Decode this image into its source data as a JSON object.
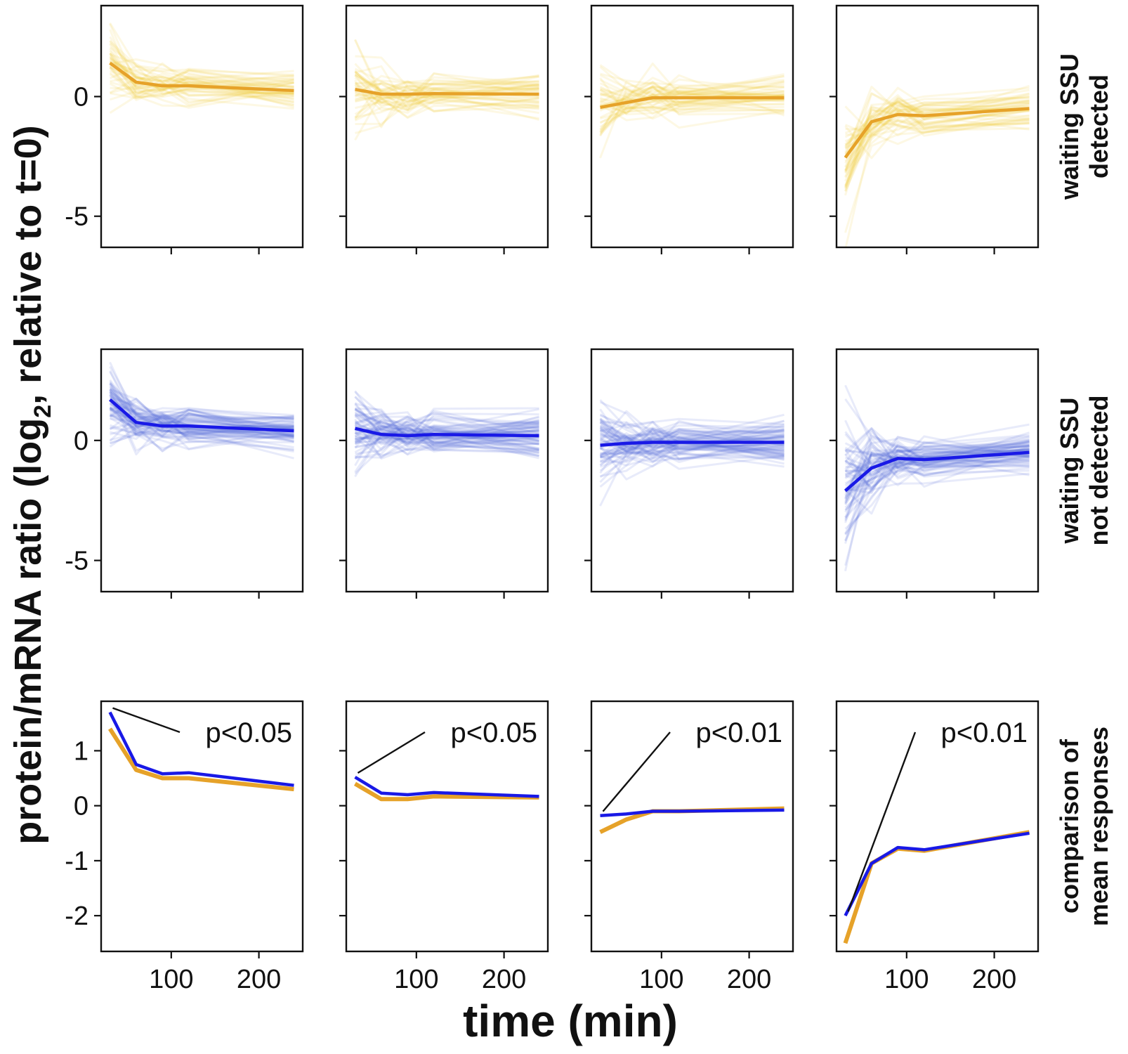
{
  "colors": {
    "detected_mean": "#e6a229",
    "detected_individual": "#f3c832",
    "not_detected_mean": "#1919e6",
    "not_detected_individual": "#4a68dc",
    "axis": "#111111",
    "background": "#ffffff"
  },
  "chart_data": {
    "type": "line",
    "layout": "3 rows x 4 columns small multiples",
    "xlabel": "time (min)",
    "ylabel": "protein/mRNA ratio (log2, relative to t=0)",
    "ylabel_parts": {
      "main": "protein/mRNA ratio (log",
      "subscript": "2",
      "tail": ", relative to t=0)"
    },
    "x": [
      30,
      60,
      90,
      120,
      240
    ],
    "xticks": [
      100,
      200
    ],
    "xtick_labels": [
      "100",
      "200"
    ],
    "xlim": [
      20,
      250
    ],
    "rows": [
      {
        "label_lines": [
          "waiting SSU",
          "detected"
        ],
        "ylim": [
          -6.3,
          3.8
        ],
        "yticks": [
          0,
          -5
        ],
        "ytick_labels": [
          "0",
          "-5"
        ],
        "panels": [
          {
            "mean": [
              1.4,
              0.6,
              0.45,
              0.45,
              0.25
            ]
          },
          {
            "mean": [
              0.3,
              0.1,
              0.1,
              0.12,
              0.1
            ]
          },
          {
            "mean": [
              -0.45,
              -0.25,
              -0.05,
              -0.05,
              -0.05
            ]
          },
          {
            "mean": [
              -2.55,
              -1.05,
              -0.75,
              -0.8,
              -0.5
            ]
          }
        ],
        "series_name": "waiting SSU detected"
      },
      {
        "label_lines": [
          "waiting SSU",
          "not detected"
        ],
        "ylim": [
          -6.3,
          3.8
        ],
        "yticks": [
          0,
          -5
        ],
        "ytick_labels": [
          "0",
          "-5"
        ],
        "panels": [
          {
            "mean": [
              1.7,
              0.75,
              0.6,
              0.6,
              0.4
            ]
          },
          {
            "mean": [
              0.5,
              0.25,
              0.2,
              0.25,
              0.2
            ]
          },
          {
            "mean": [
              -0.2,
              -0.12,
              -0.08,
              -0.08,
              -0.08
            ]
          },
          {
            "mean": [
              -2.1,
              -1.15,
              -0.75,
              -0.8,
              -0.5
            ]
          }
        ],
        "series_name": "waiting SSU not detected"
      },
      {
        "label_lines": [
          "comparison of",
          "mean responses"
        ],
        "ylim": [
          -2.65,
          1.9
        ],
        "yticks": [
          1,
          0,
          -1,
          -2
        ],
        "ytick_labels": [
          "1",
          "0",
          "-1",
          "-2"
        ],
        "panels": [
          {
            "detected": [
              1.4,
              0.65,
              0.5,
              0.5,
              0.3
            ],
            "not_detected": [
              1.7,
              0.75,
              0.58,
              0.6,
              0.37
            ],
            "p_value": "p<0.05"
          },
          {
            "detected": [
              0.4,
              0.12,
              0.12,
              0.17,
              0.15
            ],
            "not_detected": [
              0.52,
              0.23,
              0.2,
              0.24,
              0.17
            ],
            "p_value": "p<0.05"
          },
          {
            "detected": [
              -0.48,
              -0.25,
              -0.1,
              -0.1,
              -0.05
            ],
            "not_detected": [
              -0.18,
              -0.15,
              -0.1,
              -0.1,
              -0.08
            ],
            "p_value": "p<0.01"
          },
          {
            "detected": [
              -2.5,
              -1.05,
              -0.78,
              -0.82,
              -0.48
            ],
            "not_detected": [
              -2.0,
              -1.05,
              -0.76,
              -0.8,
              -0.5
            ],
            "p_value": "p<0.01"
          }
        ]
      }
    ]
  }
}
